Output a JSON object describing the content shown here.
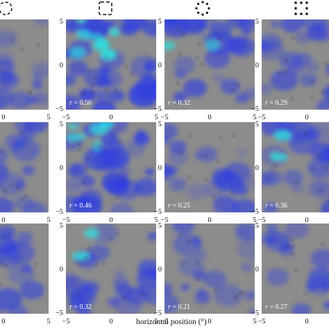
{
  "figure": {
    "xlabel": "horizontal position (°)",
    "column_icons": [
      "dashed-circle-icon",
      "dashed-square-icon",
      "dotted-diamond-icon",
      "square-dots-grid-icon"
    ],
    "tick_labels": {
      "minus5": "−5",
      "zero": "0",
      "plus5": "5"
    },
    "colors": {
      "background": "#8c8c8c",
      "blue": "#2f3fe0",
      "cyan": "#30e0e0"
    }
  },
  "chart_data": {
    "type": "heatmap",
    "xlabel": "horizontal position (°)",
    "x_range": [
      -5,
      5
    ],
    "y_range": [
      -5,
      5
    ],
    "rows": [
      {
        "panels": [
          {
            "col": 0,
            "r_label": "",
            "r_value": null
          },
          {
            "col": 1,
            "r_label": "r = 0.56",
            "r_value": 0.56
          },
          {
            "col": 2,
            "r_label": "r = 0.32",
            "r_value": 0.32
          },
          {
            "col": 3,
            "r_label": "r = 0.29",
            "r_value": 0.29
          }
        ]
      },
      {
        "panels": [
          {
            "col": 0,
            "r_label": "",
            "r_value": null
          },
          {
            "col": 1,
            "r_label": "r = 0.46",
            "r_value": 0.46
          },
          {
            "col": 2,
            "r_label": "r = 0.25",
            "r_value": 0.25
          },
          {
            "col": 3,
            "r_label": "r = 0.36",
            "r_value": 0.36
          }
        ]
      },
      {
        "panels": [
          {
            "col": 0,
            "r_label": "",
            "r_value": null
          },
          {
            "col": 1,
            "r_label": "r = 0.32",
            "r_value": 0.32
          },
          {
            "col": 2,
            "r_label": "r = 0.21",
            "r_value": 0.21
          },
          {
            "col": 3,
            "r_label": "r = 0.27",
            "r_value": 0.27
          }
        ]
      }
    ]
  }
}
